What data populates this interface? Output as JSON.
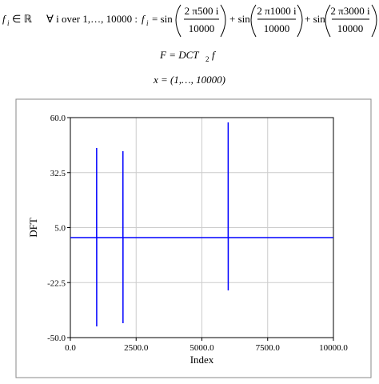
{
  "header": {
    "line1": {
      "f": "f",
      "f_sub": "i",
      "member": "∈ ℝ",
      "forall": "∀ i over 1,…, 10000 :",
      "f2": "f",
      "f2_sub": "i",
      "eq_sin": "= sin",
      "num1": "2 π500 i",
      "den1": "10000",
      "plus1": "+ sin",
      "num2": "2 π1000 i",
      "den2": "10000",
      "plus2": "+ sin",
      "num3": "2 π3000 i",
      "den3": "10000"
    },
    "line2": {
      "lhs": "F = DCT",
      "sub": "2",
      "rhs": "f"
    },
    "line3": "x = (1,…, 10000)"
  },
  "chart_data": {
    "type": "line",
    "xlabel": "Index",
    "ylabel": "DFT",
    "x": [
      0,
      998,
      999,
      1001,
      1002,
      1998,
      1999,
      2001,
      2002,
      5998,
      5999,
      6001,
      6002,
      10000
    ],
    "series": [
      {
        "color": "#0000ff",
        "values": [
          0,
          0,
          44.8,
          -44.4,
          0,
          0,
          43.2,
          -42.8,
          0,
          0,
          57.6,
          -26.4,
          0,
          0
        ]
      }
    ],
    "xlim": [
      0,
      10000
    ],
    "ylim": [
      -50,
      60
    ],
    "xticks": [
      {
        "value": 0,
        "label": "0.0"
      },
      {
        "value": 2500,
        "label": "2500.0"
      },
      {
        "value": 5000,
        "label": "5000.0"
      },
      {
        "value": 7500,
        "label": "7500.0"
      },
      {
        "value": 10000,
        "label": "10000.0"
      }
    ],
    "yticks": [
      {
        "value": -50,
        "label": "-50.0"
      },
      {
        "value": -22.5,
        "label": "-22.5"
      },
      {
        "value": 5,
        "label": "5.0"
      },
      {
        "value": 32.5,
        "label": "32.5"
      },
      {
        "value": 60,
        "label": "60.0"
      }
    ],
    "grid": true
  }
}
